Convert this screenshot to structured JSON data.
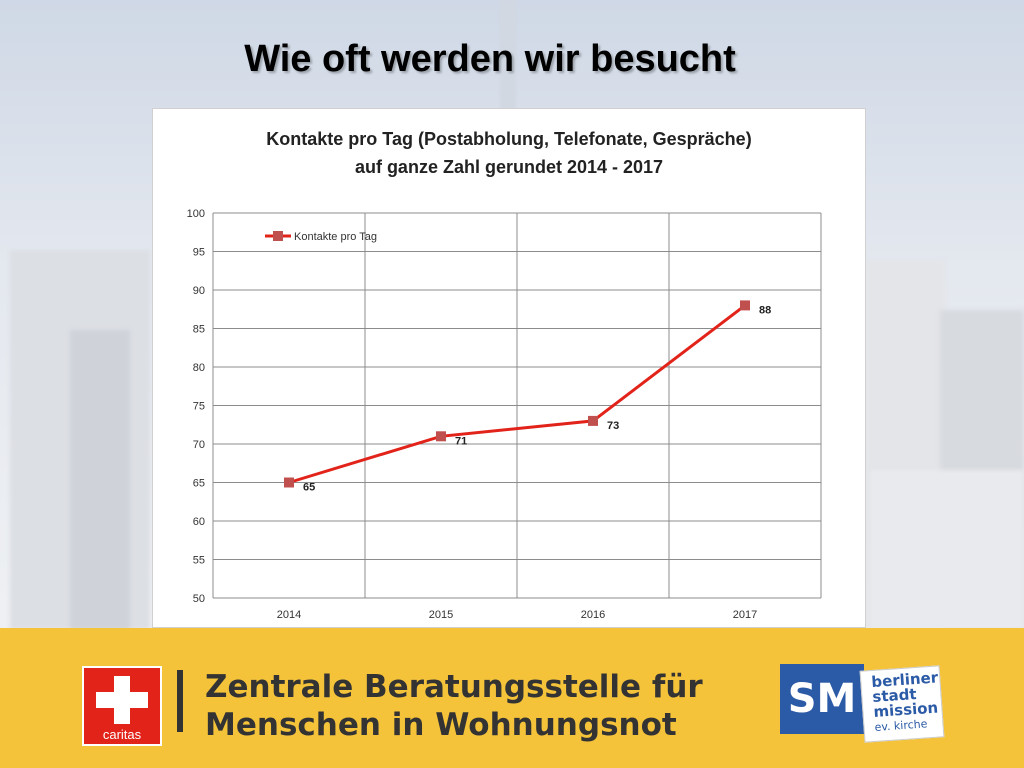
{
  "slide": {
    "title": "Wie oft werden wir besucht"
  },
  "chart_data": {
    "type": "line",
    "title_line1": "Kontakte pro Tag (Postabholung, Telefonate, Gespräche)",
    "title_line2": "auf ganze Zahl gerundet 2014  - 2017",
    "categories": [
      "2014",
      "2015",
      "2016",
      "2017"
    ],
    "series": [
      {
        "name": "Kontakte pro Tag",
        "values": [
          65,
          71,
          73,
          88
        ],
        "color": "#e2231a",
        "marker_color": "#c0504d"
      }
    ],
    "ylim": [
      50,
      100
    ],
    "yticks": [
      50,
      55,
      60,
      65,
      70,
      75,
      80,
      85,
      90,
      95,
      100
    ],
    "grid": true,
    "legend": "top-left",
    "data_labels": true
  },
  "footer": {
    "line1": "Zentrale Beratungsstelle für",
    "line2": "Menschen in Wohnungsnot",
    "caritas_label": "caritas",
    "sm_label": "SM",
    "sm_card_line1": "berliner",
    "sm_card_line2": "stadt",
    "sm_card_line3": "mission",
    "sm_card_line4": "ev. kirche"
  }
}
